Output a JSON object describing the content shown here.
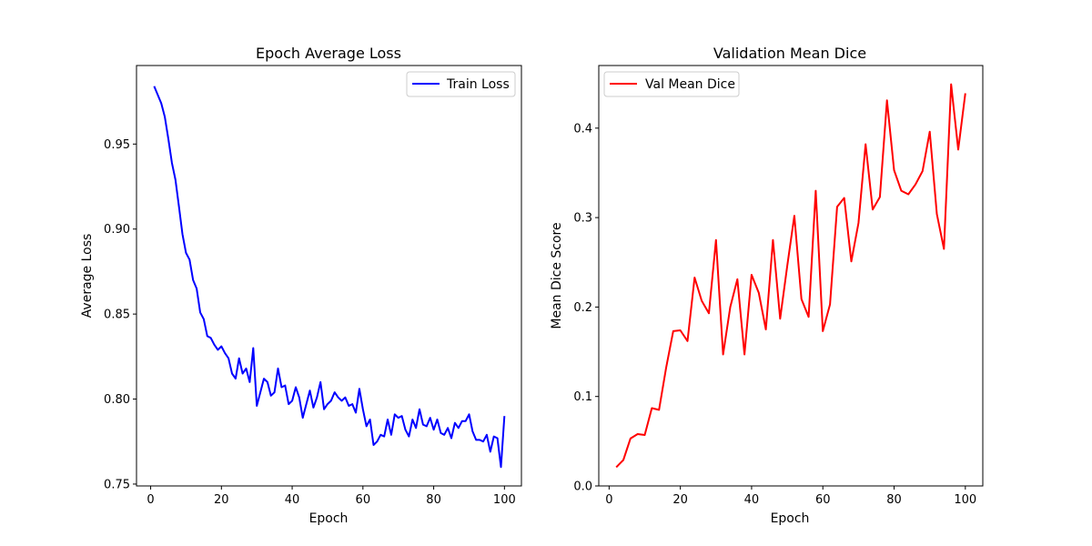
{
  "chart_data": [
    {
      "type": "line",
      "title": "Epoch Average Loss",
      "xlabel": "Epoch",
      "ylabel": "Average Loss",
      "xlim": [
        -4,
        104.8
      ],
      "ylim": [
        0.7489,
        0.9962
      ],
      "xticks": [
        0,
        20,
        40,
        60,
        80,
        100
      ],
      "yticks": [
        0.75,
        0.8,
        0.85,
        0.9,
        0.95
      ],
      "ytick_labels": [
        "0.75",
        "0.80",
        "0.85",
        "0.90",
        "0.95"
      ],
      "legend_position": "upper right",
      "grid": false,
      "series": [
        {
          "name": "Train Loss",
          "color": "#0000ff",
          "x": [
            1,
            2,
            3,
            4,
            5,
            6,
            7,
            8,
            9,
            10,
            11,
            12,
            13,
            14,
            15,
            16,
            17,
            18,
            19,
            20,
            21,
            22,
            23,
            24,
            25,
            26,
            27,
            28,
            29,
            30,
            31,
            32,
            33,
            34,
            35,
            36,
            37,
            38,
            39,
            40,
            41,
            42,
            43,
            44,
            45,
            46,
            47,
            48,
            49,
            50,
            51,
            52,
            53,
            54,
            55,
            56,
            57,
            58,
            59,
            60,
            61,
            62,
            63,
            64,
            65,
            66,
            67,
            68,
            69,
            70,
            71,
            72,
            73,
            74,
            75,
            76,
            77,
            78,
            79,
            80,
            81,
            82,
            83,
            84,
            85,
            86,
            87,
            88,
            89,
            90,
            91,
            92,
            93,
            94,
            95,
            96,
            97,
            98,
            99,
            100
          ],
          "y": [
            0.984,
            0.979,
            0.974,
            0.966,
            0.953,
            0.939,
            0.929,
            0.913,
            0.897,
            0.886,
            0.882,
            0.87,
            0.865,
            0.851,
            0.847,
            0.837,
            0.836,
            0.832,
            0.829,
            0.831,
            0.827,
            0.824,
            0.815,
            0.812,
            0.824,
            0.815,
            0.818,
            0.81,
            0.83,
            0.796,
            0.804,
            0.812,
            0.81,
            0.802,
            0.804,
            0.818,
            0.807,
            0.808,
            0.797,
            0.799,
            0.807,
            0.801,
            0.789,
            0.797,
            0.805,
            0.795,
            0.801,
            0.81,
            0.794,
            0.797,
            0.799,
            0.804,
            0.801,
            0.799,
            0.801,
            0.796,
            0.797,
            0.792,
            0.806,
            0.794,
            0.784,
            0.788,
            0.773,
            0.775,
            0.779,
            0.778,
            0.788,
            0.779,
            0.791,
            0.789,
            0.79,
            0.782,
            0.778,
            0.788,
            0.783,
            0.794,
            0.785,
            0.784,
            0.789,
            0.782,
            0.788,
            0.78,
            0.779,
            0.783,
            0.777,
            0.786,
            0.783,
            0.787,
            0.787,
            0.791,
            0.781,
            0.776,
            0.776,
            0.775,
            0.779,
            0.769,
            0.778,
            0.777,
            0.76,
            0.79
          ]
        }
      ]
    },
    {
      "type": "line",
      "title": "Validation Mean Dice",
      "xlabel": "Epoch",
      "ylabel": "Mean Dice Score",
      "xlim": [
        -2.9,
        104.9
      ],
      "ylim": [
        0.0,
        0.47
      ],
      "xticks": [
        0,
        20,
        40,
        60,
        80,
        100
      ],
      "yticks": [
        0.0,
        0.1,
        0.2,
        0.3,
        0.4
      ],
      "ytick_labels": [
        "0.0",
        "0.1",
        "0.2",
        "0.3",
        "0.4"
      ],
      "legend_position": "upper left",
      "grid": false,
      "series": [
        {
          "name": "Val Mean Dice",
          "color": "#ff0000",
          "x": [
            2,
            4,
            6,
            8,
            10,
            12,
            14,
            16,
            18,
            20,
            22,
            24,
            26,
            28,
            30,
            32,
            34,
            36,
            38,
            40,
            42,
            44,
            46,
            48,
            50,
            52,
            54,
            56,
            58,
            60,
            62,
            64,
            66,
            68,
            70,
            72,
            74,
            76,
            78,
            80,
            82,
            84,
            86,
            88,
            90,
            92,
            94,
            96,
            98,
            100
          ],
          "y": [
            0.021,
            0.029,
            0.053,
            0.058,
            0.057,
            0.087,
            0.085,
            0.132,
            0.173,
            0.174,
            0.162,
            0.233,
            0.207,
            0.193,
            0.275,
            0.147,
            0.2,
            0.231,
            0.147,
            0.236,
            0.216,
            0.175,
            0.275,
            0.187,
            0.246,
            0.302,
            0.209,
            0.189,
            0.33,
            0.173,
            0.203,
            0.312,
            0.322,
            0.251,
            0.294,
            0.382,
            0.309,
            0.323,
            0.431,
            0.353,
            0.33,
            0.326,
            0.337,
            0.352,
            0.396,
            0.304,
            0.265,
            0.449,
            0.376,
            0.439
          ]
        }
      ]
    }
  ]
}
